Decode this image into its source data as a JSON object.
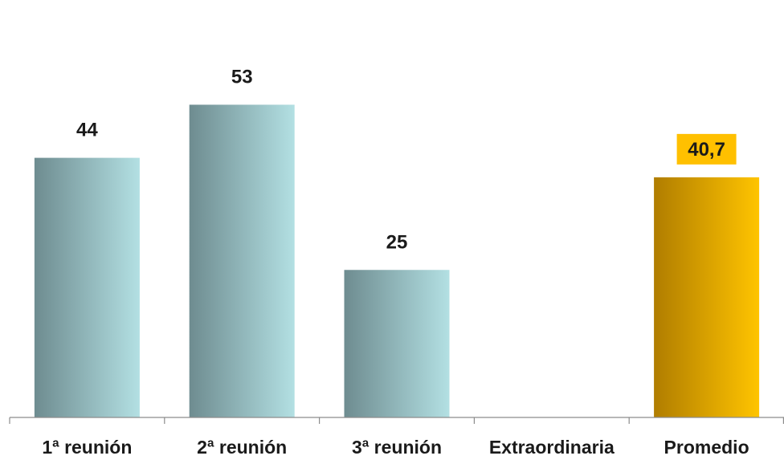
{
  "chart_data": {
    "type": "bar",
    "title": "",
    "xlabel": "",
    "ylabel": "",
    "categories": [
      "1ª reunión",
      "2ª reunión",
      "3ª reunión",
      "Extraordinaria",
      "Promedio"
    ],
    "values": [
      44,
      53,
      25,
      null,
      40.7
    ],
    "data_labels": [
      "44",
      "53",
      "25",
      "",
      "40,7"
    ],
    "ylim": [
      0,
      60
    ],
    "grid": false,
    "legend": "none",
    "colors": {
      "bar_gradient_start": "#6e8c90",
      "bar_gradient_end": "#b3e0e3",
      "highlight_gradient_start": "#b07d00",
      "highlight_gradient_end": "#ffc400",
      "highlight_label_bg": "#ffc000",
      "text": "#1a1a1a",
      "axis": "#8c8c8c"
    },
    "highlight_category": "Promedio"
  }
}
